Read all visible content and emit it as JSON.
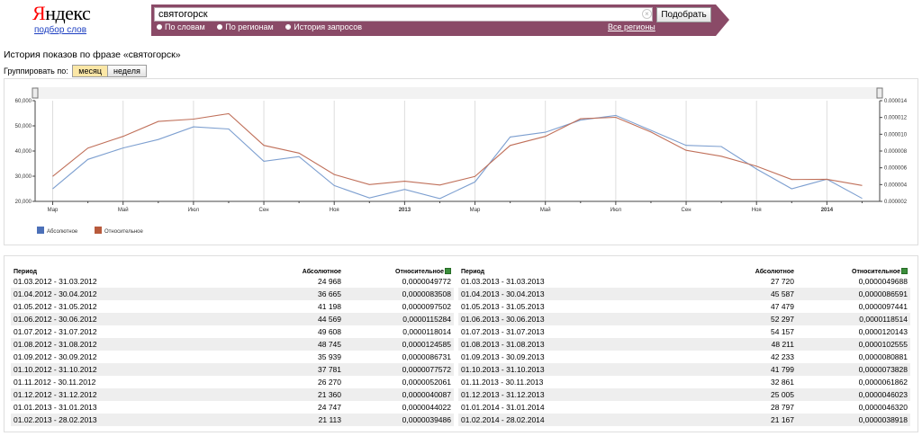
{
  "header": {
    "logo_text": "Яндекс",
    "logo_first": "Я",
    "logo_rest": "ндекс",
    "sublink": "подбор слов"
  },
  "search": {
    "query": "святогорск",
    "submit_label": "Подобрать",
    "modes": [
      {
        "label": "По словам",
        "selected": false
      },
      {
        "label": "По регионам",
        "selected": false
      },
      {
        "label": "История запросов",
        "selected": true
      }
    ],
    "regions_link": "Все регионы",
    "band_color": "#8a4a67"
  },
  "page": {
    "title": "История показов по фразе «святогорск»",
    "group_label": "Группировать по:",
    "group_options": [
      {
        "label": "месяц",
        "active": true
      },
      {
        "label": "неделя",
        "active": false
      }
    ]
  },
  "chart_data": {
    "type": "line",
    "x": [
      "Мар",
      "",
      "Май",
      "",
      "Июл",
      "",
      "Сен",
      "",
      "Ноя",
      "",
      "2013",
      "",
      "Мар",
      "",
      "Май",
      "",
      "Июл",
      "",
      "Сен",
      "",
      "Ноя",
      "",
      "2014",
      ""
    ],
    "x_bold": [
      "2013",
      "2014"
    ],
    "left_axis": {
      "ticks": [
        "20,000",
        "30,000",
        "40,000",
        "50,000",
        "60,000"
      ],
      "ylim": [
        20000,
        60000
      ]
    },
    "right_axis": {
      "ticks": [
        "0.000002",
        "0.000004",
        "0.000006",
        "0.000008",
        "0.000010",
        "0.000012",
        "0.000014"
      ],
      "ylim": [
        2e-06,
        1.4e-05
      ]
    },
    "series": [
      {
        "name": "Абсолютное",
        "axis": "left",
        "color": "#7d9fd0",
        "values": [
          24968,
          36665,
          41198,
          44569,
          49608,
          48745,
          35939,
          37781,
          26270,
          21360,
          24747,
          21113,
          27720,
          45587,
          47479,
          52297,
          54157,
          48211,
          42233,
          41799,
          32861,
          25005,
          28797,
          21167
        ]
      },
      {
        "name": "Относительное",
        "axis": "right",
        "color": "#c0705a",
        "values": [
          4.9772e-06,
          8.3508e-06,
          9.7502e-06,
          1.15284e-05,
          1.18014e-05,
          1.24585e-05,
          8.6731e-06,
          7.7572e-06,
          5.2061e-06,
          4.0087e-06,
          4.4022e-06,
          3.9486e-06,
          4.9688e-06,
          8.6591e-06,
          9.7441e-06,
          1.18514e-05,
          1.20143e-05,
          1.02555e-05,
          8.0881e-06,
          7.3828e-06,
          6.1862e-06,
          4.6023e-06,
          4.632e-06,
          3.8918e-06
        ]
      }
    ],
    "legend": [
      "Абсолютное",
      "Относительное"
    ],
    "legend_colors": [
      "#4c70b8",
      "#b85a3c"
    ],
    "grid": true
  },
  "tables": {
    "headers": {
      "period": "Период",
      "absolute": "Абсолютное",
      "relative": "Относительное"
    },
    "left_rows": [
      {
        "period": "01.03.2012 - 31.03.2012",
        "absolute": "24 968",
        "relative": "0,0000049772"
      },
      {
        "period": "01.04.2012 - 30.04.2012",
        "absolute": "36 665",
        "relative": "0,0000083508"
      },
      {
        "period": "01.05.2012 - 31.05.2012",
        "absolute": "41 198",
        "relative": "0,0000097502"
      },
      {
        "period": "01.06.2012 - 30.06.2012",
        "absolute": "44 569",
        "relative": "0,0000115284"
      },
      {
        "period": "01.07.2012 - 31.07.2012",
        "absolute": "49 608",
        "relative": "0,0000118014"
      },
      {
        "period": "01.08.2012 - 31.08.2012",
        "absolute": "48 745",
        "relative": "0,0000124585"
      },
      {
        "period": "01.09.2012 - 30.09.2012",
        "absolute": "35 939",
        "relative": "0,0000086731"
      },
      {
        "period": "01.10.2012 - 31.10.2012",
        "absolute": "37 781",
        "relative": "0,0000077572"
      },
      {
        "period": "01.11.2012 - 30.11.2012",
        "absolute": "26 270",
        "relative": "0,0000052061"
      },
      {
        "period": "01.12.2012 - 31.12.2012",
        "absolute": "21 360",
        "relative": "0,0000040087"
      },
      {
        "period": "01.01.2013 - 31.01.2013",
        "absolute": "24 747",
        "relative": "0,0000044022"
      },
      {
        "period": "01.02.2013 - 28.02.2013",
        "absolute": "21 113",
        "relative": "0,0000039486"
      }
    ],
    "right_rows": [
      {
        "period": "01.03.2013 - 31.03.2013",
        "absolute": "27 720",
        "relative": "0,0000049688"
      },
      {
        "period": "01.04.2013 - 30.04.2013",
        "absolute": "45 587",
        "relative": "0,0000086591"
      },
      {
        "period": "01.05.2013 - 31.05.2013",
        "absolute": "47 479",
        "relative": "0,0000097441"
      },
      {
        "period": "01.06.2013 - 30.06.2013",
        "absolute": "52 297",
        "relative": "0,0000118514"
      },
      {
        "period": "01.07.2013 - 31.07.2013",
        "absolute": "54 157",
        "relative": "0,0000120143"
      },
      {
        "period": "01.08.2013 - 31.08.2013",
        "absolute": "48 211",
        "relative": "0,0000102555"
      },
      {
        "period": "01.09.2013 - 30.09.2013",
        "absolute": "42 233",
        "relative": "0,0000080881"
      },
      {
        "period": "01.10.2013 - 31.10.2013",
        "absolute": "41 799",
        "relative": "0,0000073828"
      },
      {
        "period": "01.11.2013 - 30.11.2013",
        "absolute": "32 861",
        "relative": "0,0000061862"
      },
      {
        "period": "01.12.2013 - 31.12.2013",
        "absolute": "25 005",
        "relative": "0,0000046023"
      },
      {
        "period": "01.01.2014 - 31.01.2014",
        "absolute": "28 797",
        "relative": "0,0000046320"
      },
      {
        "period": "01.02.2014 - 28.02.2014",
        "absolute": "21 167",
        "relative": "0,0000038918"
      }
    ]
  }
}
